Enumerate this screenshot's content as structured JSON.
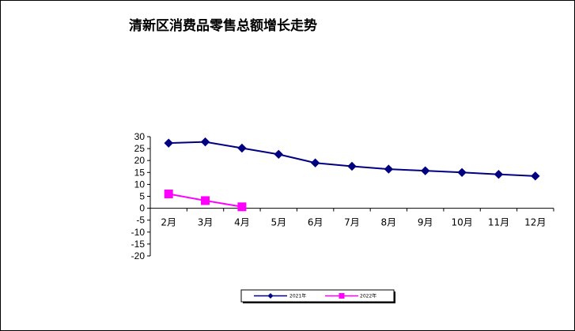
{
  "chart_data": {
    "type": "line",
    "title": "清新区消费品零售总额增长走势",
    "categories": [
      "2月",
      "3月",
      "4月",
      "5月",
      "6月",
      "7月",
      "8月",
      "9月",
      "10月",
      "11月",
      "12月"
    ],
    "series": [
      {
        "name": "2021年",
        "color": "#000080",
        "marker": "diamond",
        "values": [
          27.3,
          27.8,
          25.2,
          22.6,
          19.0,
          17.6,
          16.4,
          15.7,
          15.0,
          14.2,
          13.5
        ]
      },
      {
        "name": "2022年",
        "color": "#ff00ff",
        "marker": "square",
        "values": [
          6.0,
          3.2,
          0.6,
          null,
          null,
          null,
          null,
          null,
          null,
          null,
          null
        ]
      }
    ],
    "ylim": [
      -20,
      30
    ],
    "yticks": [
      30,
      25,
      20,
      15,
      10,
      5,
      0,
      -5,
      -10,
      -15,
      -20
    ],
    "xlabel": "",
    "ylabel": "",
    "grid": false,
    "legend_position": "bottom"
  }
}
